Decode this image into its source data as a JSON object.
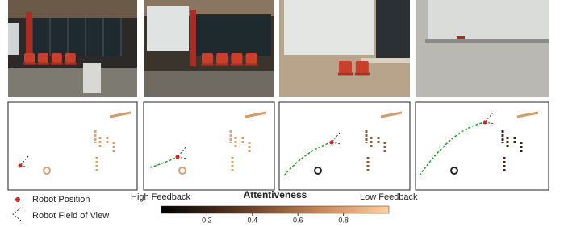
{
  "legend": {
    "items": [
      "Robot Position",
      "Robot Field of View"
    ]
  },
  "colorbar": {
    "title": "Attentiveness",
    "high_label": "High Feedback",
    "low_label": "Low Feedback",
    "lim": [
      0,
      1
    ],
    "ticks": [
      0.2,
      0.4,
      0.6,
      0.8
    ]
  }
}
